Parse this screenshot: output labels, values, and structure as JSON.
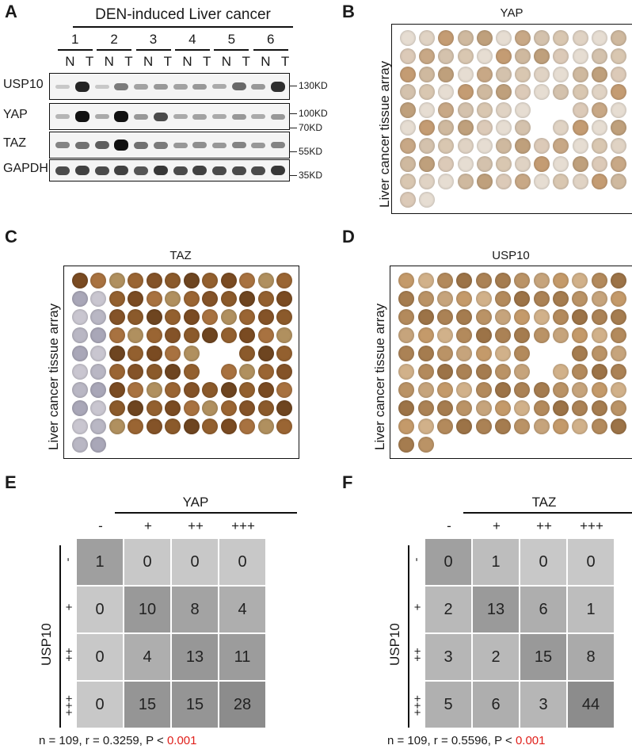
{
  "panels": {
    "A": "A",
    "B": "B",
    "C": "C",
    "D": "D",
    "E": "E",
    "F": "F"
  },
  "blot": {
    "title": "DEN-induced Liver cancer",
    "samples": [
      "1",
      "2",
      "3",
      "4",
      "5",
      "6"
    ],
    "lanes": [
      "N",
      "T",
      "N",
      "T",
      "N",
      "T",
      "N",
      "T",
      "N",
      "T",
      "N",
      "T"
    ],
    "rows": [
      {
        "label": "USP10",
        "intensity": [
          0.05,
          0.9,
          0.05,
          0.45,
          0.25,
          0.3,
          0.25,
          0.3,
          0.2,
          0.55,
          0.3,
          0.85
        ]
      },
      {
        "label": "YAP",
        "intensity": [
          0.15,
          1.0,
          0.2,
          1.0,
          0.3,
          0.7,
          0.2,
          0.25,
          0.2,
          0.3,
          0.2,
          0.3
        ]
      },
      {
        "label": "TAZ",
        "intensity": [
          0.4,
          0.5,
          0.6,
          1.0,
          0.5,
          0.45,
          0.3,
          0.35,
          0.3,
          0.4,
          0.3,
          0.4
        ]
      },
      {
        "label": "GAPDH",
        "intensity": [
          0.7,
          0.75,
          0.7,
          0.75,
          0.65,
          0.8,
          0.7,
          0.75,
          0.7,
          0.7,
          0.7,
          0.8
        ]
      }
    ],
    "markers": [
      "130KD",
      "100KD",
      "70KD",
      "55KD",
      "35KD"
    ]
  },
  "arrays": [
    {
      "title": "YAP",
      "ylabel": "Liver cancer tissue array",
      "stain": "light"
    },
    {
      "title": "TAZ",
      "ylabel": "Liver cancer tissue array",
      "stain": "dark"
    },
    {
      "title": "USP10",
      "ylabel": "Liver cancer tissue array",
      "stain": "medium"
    }
  ],
  "tables": [
    {
      "header": "YAP",
      "cols": [
        "-",
        "+",
        "++",
        "+++"
      ],
      "rowlabel": "USP10",
      "rows": [
        "-",
        "+",
        "++",
        "+++"
      ],
      "values": [
        [
          1,
          0,
          0,
          0
        ],
        [
          0,
          10,
          8,
          4
        ],
        [
          0,
          4,
          13,
          11
        ],
        [
          0,
          15,
          15,
          28
        ]
      ],
      "stats_prefix": "n = 109, r = 0.3259, P < ",
      "stats_p": "0.001"
    },
    {
      "header": "TAZ",
      "cols": [
        "-",
        "+",
        "++",
        "+++"
      ],
      "rowlabel": "USP10",
      "rows": [
        "-",
        "+",
        "++",
        "+++"
      ],
      "values": [
        [
          0,
          1,
          0,
          0
        ],
        [
          2,
          13,
          6,
          1
        ],
        [
          3,
          2,
          15,
          8
        ],
        [
          5,
          6,
          3,
          44
        ]
      ],
      "stats_prefix": "n = 109, r = 0.5596, P < ",
      "stats_p": "0.001"
    }
  ],
  "colors": {
    "red": "#e0201b",
    "dark_cell": "#8f8f8f",
    "mid_cell": "#b0b0b0",
    "light_cell": "#d6d6d6"
  }
}
